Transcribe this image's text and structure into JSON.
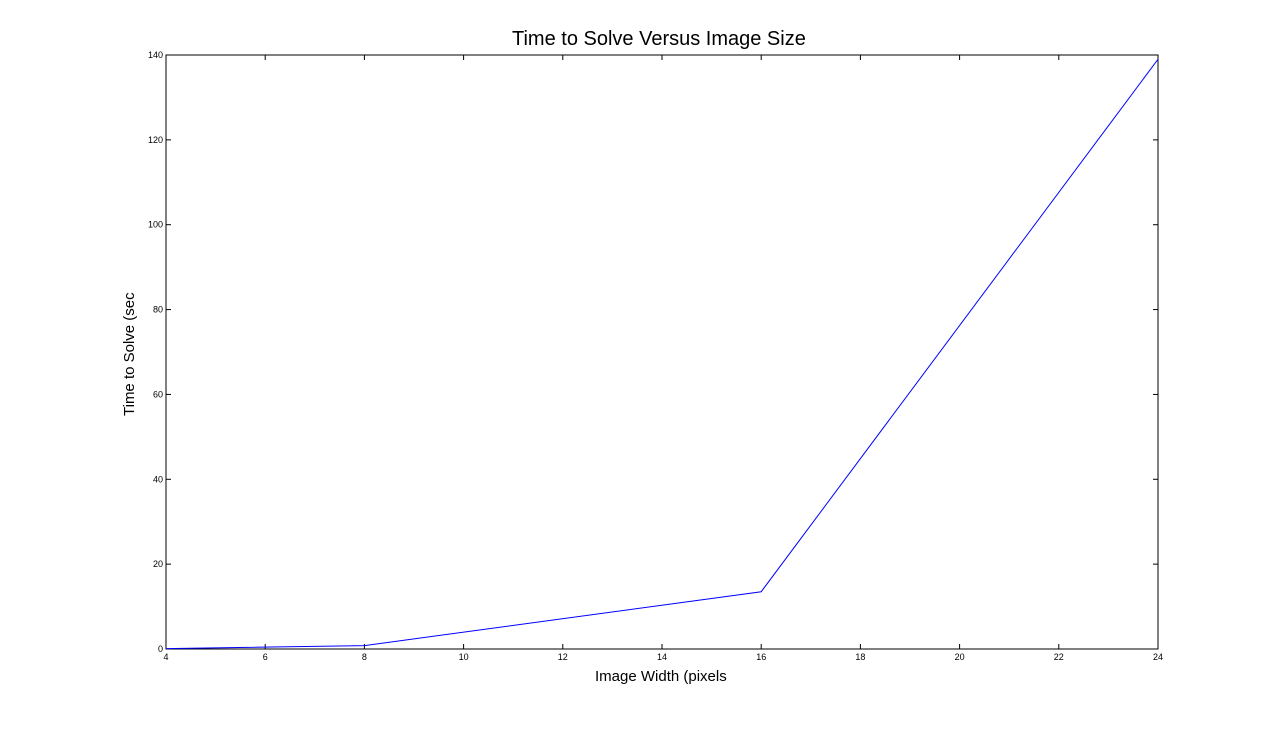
{
  "chart_data": {
    "type": "line",
    "title": "Time to Solve Versus Image Size",
    "xlabel": "Image Width (pixels",
    "ylabel": "Time to Solve (sec",
    "xlim": [
      4,
      24
    ],
    "ylim": [
      0,
      140
    ],
    "xticks": [
      4,
      6,
      8,
      10,
      12,
      14,
      16,
      18,
      20,
      22,
      24
    ],
    "yticks": [
      0,
      20,
      40,
      60,
      80,
      100,
      120,
      140
    ],
    "grid": false,
    "series": [
      {
        "color": "#0000ff",
        "x": [
          4,
          8,
          16,
          24
        ],
        "y": [
          0.1,
          0.8,
          13.5,
          139
        ]
      }
    ]
  }
}
